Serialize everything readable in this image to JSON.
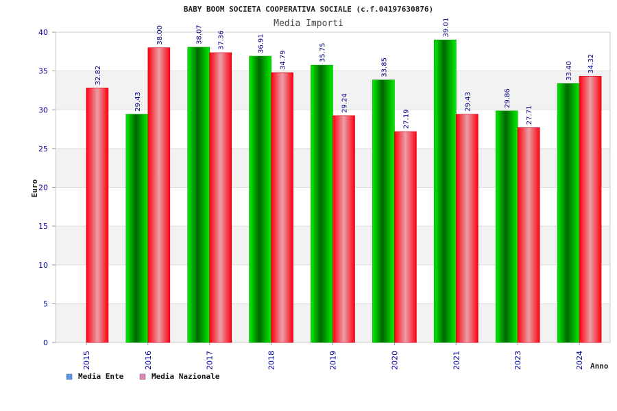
{
  "chart_data": {
    "type": "bar",
    "title": "BABY BOOM SOCIETA COOPERATIVA SOCIALE (c.f.04197630876)",
    "subtitle": "Media Importi",
    "xlabel": "Anno",
    "ylabel": "Euro",
    "categories": [
      "2015",
      "2016",
      "2017",
      "2018",
      "2019",
      "2020",
      "2021",
      "2023",
      "2024"
    ],
    "series": [
      {
        "name": "Media Ente",
        "values": [
          null,
          29.43,
          38.07,
          36.91,
          35.75,
          33.85,
          39.01,
          29.86,
          33.4
        ],
        "labels": [
          "",
          "29.43",
          "38.07",
          "36.91",
          "35.75",
          "33.85",
          "39.01",
          "29.86",
          "33.40"
        ]
      },
      {
        "name": "Media Nazionale",
        "values": [
          32.82,
          38.0,
          37.36,
          34.79,
          29.24,
          27.19,
          29.43,
          27.71,
          34.32
        ],
        "labels": [
          "32.82",
          "38.00",
          "37.36",
          "34.79",
          "29.24",
          "27.19",
          "29.43",
          "27.71",
          "34.32"
        ]
      }
    ],
    "ylim": [
      0,
      40
    ],
    "yticks": [
      "0",
      "5",
      "10",
      "15",
      "20",
      "25",
      "30",
      "35",
      "40"
    ],
    "grid": true,
    "legend_position": "bottom-left",
    "colors": {
      "ente": "#00cc00",
      "nazionale": "#ee1122",
      "legend_ente": "#5599ee",
      "legend_nazionale": "#dd88bb",
      "band": "#f2f2f2"
    }
  }
}
